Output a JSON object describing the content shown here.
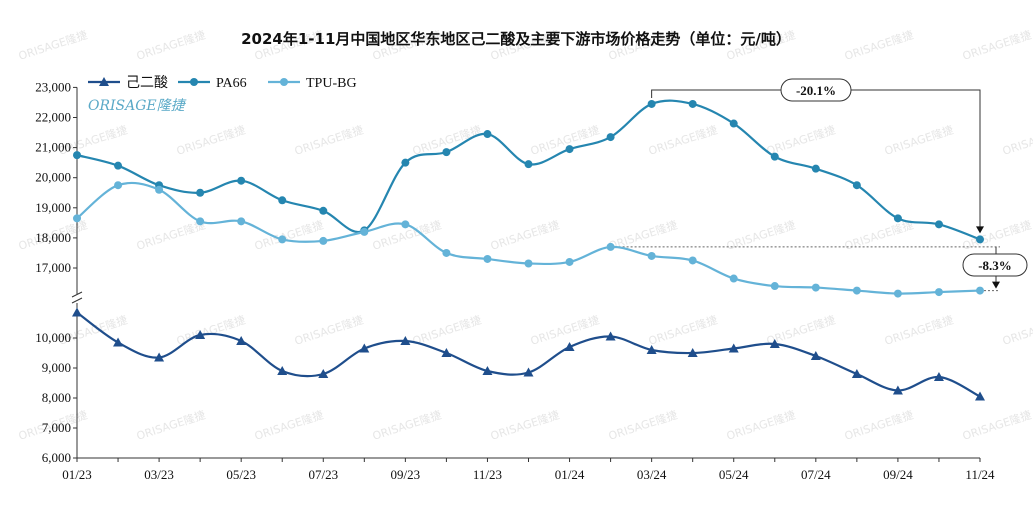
{
  "chart_data": {
    "type": "line",
    "title": "2024年1-11月中国地区华东地区己二酸及主要下游市场价格走势（单位：元/吨）",
    "brand": "ORISAGE隆捷",
    "watermark": "ORISAGE隆捷",
    "x": [
      "01/23",
      "02/23",
      "03/23",
      "04/23",
      "05/23",
      "06/23",
      "07/23",
      "08/23",
      "09/23",
      "10/23",
      "11/23",
      "12/23",
      "01/24",
      "02/24",
      "03/24",
      "04/24",
      "05/24",
      "06/24",
      "07/24",
      "08/24",
      "09/24",
      "10/24",
      "11/24"
    ],
    "x_tick_labels": [
      "01/23",
      "03/23",
      "05/23",
      "07/23",
      "09/23",
      "11/23",
      "01/24",
      "03/24",
      "05/24",
      "07/24",
      "09/24",
      "11/24"
    ],
    "y_upper_ticks": [
      17000,
      18000,
      19000,
      20000,
      21000,
      22000,
      23000
    ],
    "y_lower_ticks": [
      6000,
      7000,
      8000,
      9000,
      10000
    ],
    "y_upper_tick_labels": [
      "17,000",
      "18,000",
      "19,000",
      "20,000",
      "21,000",
      "22,000",
      "23,000"
    ],
    "y_lower_tick_labels": [
      "6,000",
      "7,000",
      "8,000",
      "9,000",
      "10,000"
    ],
    "y_break": "between 10,800 and 16,300",
    "ylim_lower": [
      6000,
      10800
    ],
    "ylim_upper": [
      16300,
      23000
    ],
    "legend_position": "top-left",
    "grid": false,
    "series": [
      {
        "name": "己二酸",
        "color": "#1f4e8c",
        "marker": "triangle",
        "values": [
          10850,
          9850,
          9350,
          10100,
          9900,
          8900,
          8800,
          9650,
          9900,
          9500,
          8900,
          8850,
          9700,
          10050,
          9600,
          9500,
          9650,
          9800,
          9400,
          8800,
          8250,
          8700,
          8050
        ]
      },
      {
        "name": "PA66",
        "color": "#2586b0",
        "marker": "circle",
        "values": [
          20750,
          20400,
          19750,
          19500,
          19900,
          19250,
          18900,
          18250,
          20500,
          20850,
          21450,
          20450,
          20950,
          21350,
          22450,
          22450,
          21800,
          20700,
          20300,
          19750,
          18650,
          18450,
          17950
        ]
      },
      {
        "name": "TPU-BG",
        "color": "#64b3d8",
        "marker": "circle",
        "values": [
          18650,
          19750,
          19600,
          18550,
          18550,
          17950,
          17900,
          18200,
          18450,
          17500,
          17300,
          17150,
          17200,
          17700,
          17400,
          17250,
          16650,
          16400,
          16350,
          16250,
          16150,
          16200,
          16250
        ]
      }
    ],
    "annotations": [
      {
        "label": "-20.1%",
        "from": "03/24",
        "to": "11/24",
        "series": "PA66"
      },
      {
        "label": "-8.3%",
        "from": "02/24",
        "to": "11/24",
        "series": "TPU-BG"
      }
    ]
  }
}
